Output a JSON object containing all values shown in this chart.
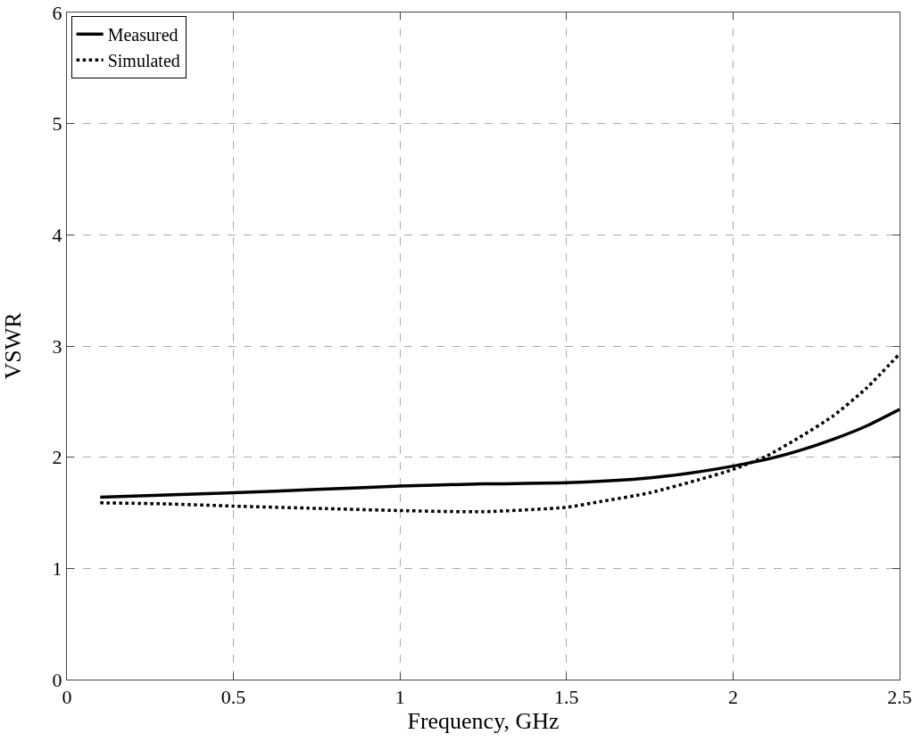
{
  "chart_data": {
    "type": "line",
    "xlabel": "Frequency, GHz",
    "ylabel": "VSWR",
    "xlim": [
      0,
      2.5
    ],
    "xticks": [
      0,
      0.5,
      1,
      1.5,
      2,
      2.5
    ],
    "ylim": [
      0,
      6
    ],
    "yticks": [
      0,
      1,
      2,
      3,
      4,
      5,
      6
    ],
    "grid": true,
    "legend": "top left",
    "marker": "none",
    "series": [
      {
        "name": "Measured",
        "color": "#000000",
        "line_style": "solid",
        "x": [
          0.1,
          0.3,
          0.5,
          0.75,
          1.0,
          1.25,
          1.5,
          1.7,
          1.8,
          1.9,
          2.0,
          2.1,
          2.2,
          2.3,
          2.4,
          2.5
        ],
        "values": [
          1.64,
          1.66,
          1.68,
          1.71,
          1.74,
          1.76,
          1.77,
          1.8,
          1.83,
          1.87,
          1.92,
          1.98,
          2.06,
          2.16,
          2.28,
          2.43
        ]
      },
      {
        "name": "Simulated",
        "color": "#000000",
        "line_style": "dotted",
        "x": [
          0.1,
          0.3,
          0.5,
          0.75,
          1.0,
          1.25,
          1.5,
          1.6,
          1.75,
          1.9,
          2.0,
          2.1,
          2.2,
          2.3,
          2.4,
          2.5
        ],
        "values": [
          1.59,
          1.58,
          1.56,
          1.54,
          1.52,
          1.51,
          1.55,
          1.6,
          1.68,
          1.8,
          1.89,
          2.01,
          2.18,
          2.37,
          2.62,
          2.93
        ]
      }
    ]
  }
}
